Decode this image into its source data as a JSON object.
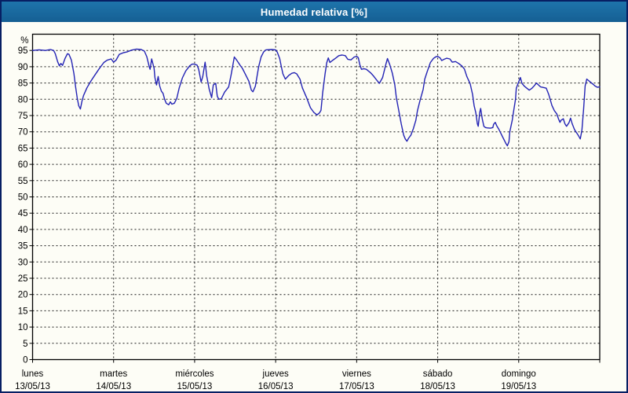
{
  "window": {
    "title": "Humedad relativa [%]"
  },
  "colors": {
    "titlebar_top": "#1e74ab",
    "titlebar_bottom": "#155f93",
    "titlebar_text": "#ffffff",
    "outer_border": "#071f63",
    "background": "#fdfdf6",
    "plot_frame": "#000000",
    "gridline": "#1a1a1a",
    "axis_text": "#000000",
    "line": "#2323b4"
  },
  "chart_data": {
    "type": "line",
    "title": "Humedad relativa [%]",
    "y_unit_label": "%",
    "ylabel": "",
    "xlabel": "",
    "ylim": [
      0,
      100
    ],
    "y_tick_step": 5,
    "y_ticks": [
      0,
      5,
      10,
      15,
      20,
      25,
      30,
      35,
      40,
      45,
      50,
      55,
      60,
      65,
      70,
      75,
      80,
      85,
      90,
      95
    ],
    "x_range_days": [
      0,
      7
    ],
    "grid": "dashed",
    "legend": "none",
    "x_days": [
      {
        "name": "lunes",
        "date": "13/05/13"
      },
      {
        "name": "martes",
        "date": "14/05/13"
      },
      {
        "name": "miércoles",
        "date": "15/05/13"
      },
      {
        "name": "jueves",
        "date": "16/05/13"
      },
      {
        "name": "viernes",
        "date": "17/05/13"
      },
      {
        "name": "sábado",
        "date": "18/05/13"
      },
      {
        "name": "domingo",
        "date": "19/05/13"
      }
    ],
    "series": [
      {
        "name": "Humedad relativa",
        "points": [
          [
            0.0,
            95.0
          ],
          [
            0.08,
            95.2
          ],
          [
            0.16,
            95.0
          ],
          [
            0.22,
            95.3
          ],
          [
            0.26,
            95.0
          ],
          [
            0.28,
            94.0
          ],
          [
            0.31,
            91.5
          ],
          [
            0.33,
            90.3
          ],
          [
            0.35,
            91.0
          ],
          [
            0.37,
            90.4
          ],
          [
            0.4,
            92.5
          ],
          [
            0.43,
            94.0
          ],
          [
            0.45,
            93.8
          ],
          [
            0.48,
            92.0
          ],
          [
            0.51,
            88.0
          ],
          [
            0.53,
            84.0
          ],
          [
            0.55,
            80.5
          ],
          [
            0.57,
            78.0
          ],
          [
            0.59,
            77.0
          ],
          [
            0.61,
            79.5
          ],
          [
            0.63,
            81.2
          ],
          [
            0.67,
            83.5
          ],
          [
            0.72,
            85.6
          ],
          [
            0.77,
            87.5
          ],
          [
            0.82,
            89.3
          ],
          [
            0.88,
            91.3
          ],
          [
            0.92,
            92.0
          ],
          [
            0.97,
            92.4
          ],
          [
            1.0,
            91.4
          ],
          [
            1.03,
            92.0
          ],
          [
            1.07,
            93.8
          ],
          [
            1.12,
            94.3
          ],
          [
            1.17,
            94.6
          ],
          [
            1.22,
            95.1
          ],
          [
            1.28,
            95.4
          ],
          [
            1.34,
            95.3
          ],
          [
            1.38,
            94.8
          ],
          [
            1.41,
            93.1
          ],
          [
            1.44,
            90.0
          ],
          [
            1.45,
            89.2
          ],
          [
            1.47,
            92.4
          ],
          [
            1.5,
            89.5
          ],
          [
            1.51,
            86.6
          ],
          [
            1.53,
            84.4
          ],
          [
            1.55,
            87.0
          ],
          [
            1.57,
            84.0
          ],
          [
            1.59,
            82.5
          ],
          [
            1.61,
            81.8
          ],
          [
            1.63,
            80.0
          ],
          [
            1.65,
            78.8
          ],
          [
            1.68,
            78.3
          ],
          [
            1.7,
            79.2
          ],
          [
            1.72,
            78.5
          ],
          [
            1.75,
            78.8
          ],
          [
            1.78,
            80.3
          ],
          [
            1.81,
            83.5
          ],
          [
            1.85,
            86.6
          ],
          [
            1.89,
            88.7
          ],
          [
            1.94,
            90.3
          ],
          [
            1.97,
            90.8
          ],
          [
            2.0,
            90.8
          ],
          [
            2.03,
            90.5
          ],
          [
            2.05,
            89.2
          ],
          [
            2.07,
            86.6
          ],
          [
            2.08,
            85.3
          ],
          [
            2.1,
            87.0
          ],
          [
            2.12,
            90.0
          ],
          [
            2.13,
            91.4
          ],
          [
            2.15,
            87.0
          ],
          [
            2.18,
            83.1
          ],
          [
            2.21,
            80.5
          ],
          [
            2.23,
            84.4
          ],
          [
            2.26,
            84.9
          ],
          [
            2.28,
            80.9
          ],
          [
            2.3,
            80.0
          ],
          [
            2.33,
            80.2
          ],
          [
            2.37,
            82.2
          ],
          [
            2.42,
            83.8
          ],
          [
            2.45,
            87.5
          ],
          [
            2.49,
            93.0
          ],
          [
            2.52,
            92.0
          ],
          [
            2.56,
            90.5
          ],
          [
            2.59,
            89.5
          ],
          [
            2.64,
            87.0
          ],
          [
            2.67,
            85.5
          ],
          [
            2.7,
            82.8
          ],
          [
            2.72,
            82.3
          ],
          [
            2.75,
            84.0
          ],
          [
            2.79,
            90.0
          ],
          [
            2.82,
            93.0
          ],
          [
            2.85,
            94.5
          ],
          [
            2.88,
            95.2
          ],
          [
            2.95,
            95.3
          ],
          [
            3.0,
            95.2
          ],
          [
            3.02,
            94.5
          ],
          [
            3.05,
            92.5
          ],
          [
            3.07,
            90.0
          ],
          [
            3.09,
            87.8
          ],
          [
            3.12,
            86.2
          ],
          [
            3.16,
            87.3
          ],
          [
            3.2,
            88.0
          ],
          [
            3.23,
            88.2
          ],
          [
            3.26,
            87.8
          ],
          [
            3.3,
            86.2
          ],
          [
            3.33,
            83.5
          ],
          [
            3.38,
            80.6
          ],
          [
            3.43,
            77.4
          ],
          [
            3.47,
            76.0
          ],
          [
            3.51,
            75.2
          ],
          [
            3.54,
            75.8
          ],
          [
            3.56,
            76.6
          ],
          [
            3.58,
            81.9
          ],
          [
            3.61,
            87.8
          ],
          [
            3.63,
            91.2
          ],
          [
            3.65,
            92.7
          ],
          [
            3.67,
            91.3
          ],
          [
            3.7,
            91.9
          ],
          [
            3.74,
            92.6
          ],
          [
            3.78,
            93.4
          ],
          [
            3.82,
            93.6
          ],
          [
            3.86,
            93.4
          ],
          [
            3.89,
            92.3
          ],
          [
            3.93,
            92.1
          ],
          [
            3.97,
            93.0
          ],
          [
            4.0,
            93.2
          ],
          [
            4.02,
            92.8
          ],
          [
            4.04,
            90.5
          ],
          [
            4.06,
            89.2
          ],
          [
            4.09,
            89.4
          ],
          [
            4.12,
            89.2
          ],
          [
            4.17,
            88.2
          ],
          [
            4.21,
            87.1
          ],
          [
            4.25,
            85.8
          ],
          [
            4.28,
            84.9
          ],
          [
            4.32,
            86.7
          ],
          [
            4.36,
            90.7
          ],
          [
            4.38,
            92.5
          ],
          [
            4.41,
            90.5
          ],
          [
            4.44,
            88.0
          ],
          [
            4.47,
            84.5
          ],
          [
            4.49,
            80.5
          ],
          [
            4.52,
            76.5
          ],
          [
            4.55,
            72.5
          ],
          [
            4.58,
            69.0
          ],
          [
            4.6,
            67.8
          ],
          [
            4.62,
            67.1
          ],
          [
            4.64,
            68.0
          ],
          [
            4.67,
            69.0
          ],
          [
            4.7,
            71.0
          ],
          [
            4.73,
            73.5
          ],
          [
            4.75,
            76.5
          ],
          [
            4.78,
            79.5
          ],
          [
            4.82,
            83.0
          ],
          [
            4.84,
            86.2
          ],
          [
            4.87,
            88.5
          ],
          [
            4.91,
            91.3
          ],
          [
            4.95,
            92.6
          ],
          [
            4.98,
            93.1
          ],
          [
            5.0,
            93.2
          ],
          [
            5.03,
            92.7
          ],
          [
            5.05,
            91.9
          ],
          [
            5.08,
            92.3
          ],
          [
            5.11,
            92.6
          ],
          [
            5.15,
            92.4
          ],
          [
            5.18,
            91.4
          ],
          [
            5.22,
            91.6
          ],
          [
            5.26,
            91.0
          ],
          [
            5.3,
            90.2
          ],
          [
            5.33,
            89.3
          ],
          [
            5.36,
            87.0
          ],
          [
            5.4,
            84.8
          ],
          [
            5.43,
            81.5
          ],
          [
            5.45,
            78.0
          ],
          [
            5.47,
            75.9
          ],
          [
            5.49,
            72.5
          ],
          [
            5.5,
            71.7
          ],
          [
            5.52,
            76.0
          ],
          [
            5.53,
            77.2
          ],
          [
            5.55,
            74.0
          ],
          [
            5.57,
            71.7
          ],
          [
            5.59,
            71.3
          ],
          [
            5.61,
            71.2
          ],
          [
            5.65,
            71.1
          ],
          [
            5.68,
            71.3
          ],
          [
            5.69,
            72.3
          ],
          [
            5.71,
            72.9
          ],
          [
            5.73,
            71.8
          ],
          [
            5.75,
            71.0
          ],
          [
            5.78,
            69.5
          ],
          [
            5.81,
            68.0
          ],
          [
            5.84,
            66.5
          ],
          [
            5.86,
            65.7
          ],
          [
            5.88,
            67.0
          ],
          [
            5.89,
            70.0
          ],
          [
            5.92,
            73.5
          ],
          [
            5.94,
            76.8
          ],
          [
            5.96,
            80.0
          ],
          [
            5.97,
            83.4
          ],
          [
            6.01,
            86.0
          ],
          [
            6.02,
            86.7
          ],
          [
            6.04,
            84.9
          ],
          [
            6.07,
            84.0
          ],
          [
            6.1,
            83.4
          ],
          [
            6.13,
            82.8
          ],
          [
            6.16,
            83.3
          ],
          [
            6.19,
            84.1
          ],
          [
            6.22,
            85.0
          ],
          [
            6.24,
            84.5
          ],
          [
            6.27,
            83.8
          ],
          [
            6.31,
            83.6
          ],
          [
            6.34,
            83.4
          ],
          [
            6.37,
            81.5
          ],
          [
            6.41,
            78.1
          ],
          [
            6.44,
            76.5
          ],
          [
            6.47,
            75.5
          ],
          [
            6.49,
            74.0
          ],
          [
            6.51,
            72.9
          ],
          [
            6.52,
            73.5
          ],
          [
            6.55,
            74.0
          ],
          [
            6.57,
            72.5
          ],
          [
            6.59,
            71.7
          ],
          [
            6.62,
            72.8
          ],
          [
            6.64,
            74.2
          ],
          [
            6.66,
            72.5
          ],
          [
            6.69,
            70.6
          ],
          [
            6.72,
            69.5
          ],
          [
            6.74,
            68.7
          ],
          [
            6.76,
            67.8
          ],
          [
            6.78,
            70.5
          ],
          [
            6.8,
            76.8
          ],
          [
            6.82,
            84.1
          ],
          [
            6.84,
            86.2
          ],
          [
            6.85,
            86.0
          ],
          [
            6.89,
            85.2
          ],
          [
            6.92,
            84.6
          ],
          [
            6.94,
            84.1
          ],
          [
            6.97,
            83.7
          ],
          [
            7.0,
            83.8
          ]
        ]
      }
    ]
  }
}
